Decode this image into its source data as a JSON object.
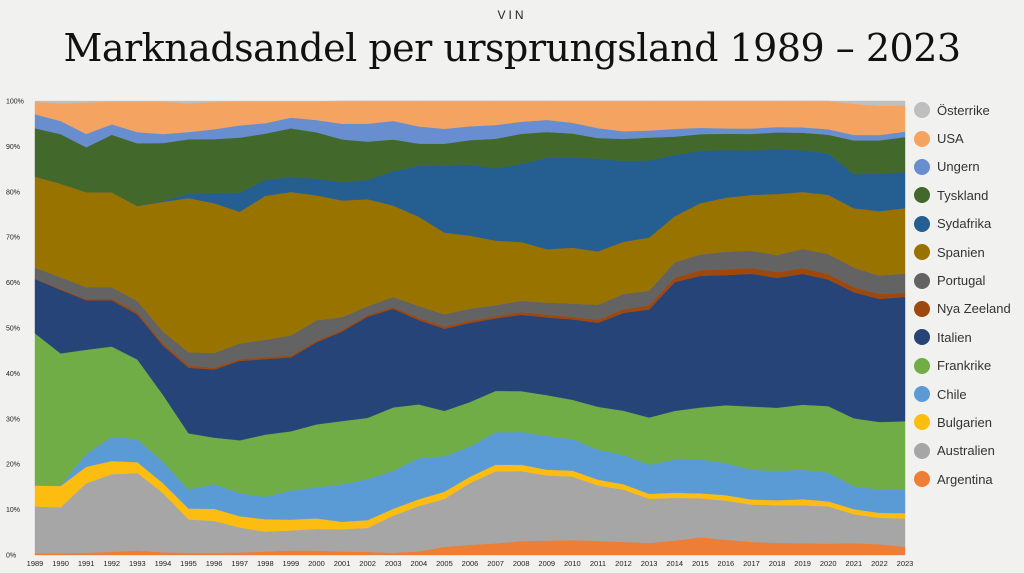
{
  "header": {
    "kicker": "VIN",
    "title": "Marknadsandel per ursprungsland 1989 – 2023"
  },
  "chart_data": {
    "type": "area",
    "stacked": true,
    "normalized": true,
    "x": [
      1989,
      1990,
      1991,
      1992,
      1993,
      1994,
      1995,
      1996,
      1997,
      1998,
      1999,
      2000,
      2001,
      2002,
      2003,
      2004,
      2005,
      2006,
      2007,
      2008,
      2009,
      2010,
      2011,
      2012,
      2013,
      2014,
      2015,
      2016,
      2017,
      2018,
      2019,
      2020,
      2021,
      2022,
      2023
    ],
    "y_ticks": [
      "0%",
      "10%",
      "20%",
      "30%",
      "40%",
      "50%",
      "60%",
      "70%",
      "80%",
      "90%",
      "100%"
    ],
    "ylim": [
      0,
      100
    ],
    "legend_position": "right",
    "series": [
      {
        "name": "Argentina",
        "color": "#ee7d35",
        "values": [
          0.4,
          0.4,
          0.5,
          0.7,
          1,
          0.6,
          0.5,
          0.5,
          0.6,
          0.8,
          1,
          1,
          0.8,
          0.7,
          0.5,
          0.8,
          1.8,
          2.3,
          2.6,
          3.1,
          3.2,
          3.3,
          3.1,
          2.9,
          2.7,
          3.2,
          3.9,
          3.4,
          2.9,
          2.7,
          2.6,
          2.5,
          2.6,
          2.4,
          1.8
        ]
      },
      {
        "name": "Australien",
        "color": "#a6a6a6",
        "values": [
          10.3,
          10.1,
          15.2,
          17,
          17.2,
          13.3,
          7.3,
          7.1,
          5.7,
          4.5,
          4.5,
          4.9,
          5.1,
          5.5,
          8.2,
          10,
          10.7,
          13.9,
          16.2,
          15.6,
          14.5,
          14.1,
          12.3,
          11.6,
          9.9,
          9.5,
          8.6,
          8.7,
          8.3,
          8.4,
          8.4,
          8.2,
          6.3,
          5.9,
          6.3
        ]
      },
      {
        "name": "Bulgarien",
        "color": "#fdbd10",
        "values": [
          4.6,
          4.7,
          3.6,
          2.9,
          2.4,
          2.2,
          2.4,
          2.7,
          2.6,
          2.8,
          2.4,
          2.4,
          1.7,
          1.8,
          1.5,
          1.5,
          1.6,
          1.4,
          1.5,
          1.4,
          1.3,
          1.3,
          1.3,
          1.2,
          1.1,
          1.1,
          1.1,
          1.2,
          1.1,
          1.1,
          1.3,
          1.1,
          1.1,
          1.1,
          1.2
        ]
      },
      {
        "name": "Chile",
        "color": "#5b9bd5",
        "values": [
          0.1,
          0.1,
          2.8,
          5.3,
          5.1,
          4.8,
          4.2,
          5.5,
          5.3,
          5.1,
          6.5,
          7.1,
          8.6,
          9.4,
          8.4,
          9.1,
          7.9,
          6.8,
          7.3,
          7.3,
          7.5,
          7,
          6.6,
          6.5,
          6.5,
          7.4,
          7.5,
          7.1,
          6.6,
          6.5,
          6.6,
          6.3,
          5,
          5.2,
          5.3
        ]
      },
      {
        "name": "Frankrike",
        "color": "#70ad47",
        "values": [
          33.4,
          29.1,
          22.8,
          19.8,
          17.7,
          15,
          12.3,
          10.4,
          12.1,
          14.1,
          13.2,
          14.2,
          14.5,
          14,
          14,
          11.8,
          10.1,
          10,
          9.3,
          9.1,
          9.1,
          8.7,
          9.5,
          9.8,
          10.6,
          10.8,
          11.4,
          12.9,
          14,
          14.1,
          14.3,
          14.6,
          14.8,
          15.1,
          15.1
        ]
      },
      {
        "name": "Italien",
        "color": "#264478",
        "values": [
          12,
          14,
          10.8,
          10.1,
          10,
          11,
          14.4,
          15.2,
          18.2,
          17.1,
          16.5,
          18.6,
          20.5,
          23.2,
          21.8,
          18.6,
          18.3,
          17.8,
          16.3,
          17,
          17.3,
          17.8,
          18.6,
          21.7,
          24.2,
          28.6,
          29,
          28.9,
          29.4,
          28.9,
          28.9,
          27.8,
          27.5,
          27.5,
          27.6
        ]
      },
      {
        "name": "Nya Zeeland",
        "color": "#9e480e",
        "values": [
          0.1,
          0.2,
          0.3,
          0.4,
          0.5,
          0.5,
          0.5,
          0.4,
          0.4,
          0.4,
          0.4,
          0.4,
          0.4,
          0.4,
          0.4,
          0.5,
          0.5,
          0.5,
          0.5,
          0.6,
          0.6,
          0.6,
          0.7,
          0.8,
          0.9,
          1,
          1.2,
          1.3,
          1.3,
          1.3,
          1.3,
          1.2,
          1.1,
          1.1,
          0.9
        ]
      },
      {
        "name": "Portugal",
        "color": "#636363",
        "values": [
          2.4,
          2.6,
          2.6,
          2.5,
          2.5,
          2.7,
          2.9,
          3.3,
          3.6,
          4,
          4.5,
          4.6,
          2.9,
          2,
          2.2,
          2.6,
          2.7,
          2.7,
          2.5,
          2.5,
          2.7,
          2.9,
          3.3,
          3.4,
          3.3,
          3.4,
          3.5,
          3.9,
          3.8,
          3.8,
          4.2,
          4.4,
          4.3,
          4.1,
          4.3
        ]
      },
      {
        "name": "Spanien",
        "color": "#997300",
        "values": [
          20.1,
          20.6,
          20.8,
          20.8,
          21.1,
          29,
          33.8,
          33.4,
          30.2,
          32.6,
          32,
          28.3,
          26.7,
          24.5,
          20.2,
          19.7,
          18.2,
          16.4,
          14.5,
          13.1,
          11.9,
          12.4,
          11.8,
          11.6,
          11.9,
          10.2,
          11.3,
          12,
          12.4,
          13.6,
          12.6,
          13,
          12.9,
          14.4,
          14.5
        ]
      },
      {
        "name": "Sydafrika",
        "color": "#255e91",
        "values": [
          0,
          0,
          0,
          0,
          0,
          0.2,
          1,
          2.3,
          4.4,
          3.6,
          3.3,
          3.8,
          4.2,
          4.4,
          7.6,
          11.2,
          14.9,
          16,
          16.2,
          17.4,
          20.3,
          20,
          20.5,
          17.9,
          17.3,
          13.6,
          11.5,
          10.6,
          9.8,
          10,
          9.2,
          9.1,
          7.5,
          8.3,
          8
        ]
      },
      {
        "name": "Tyskland",
        "color": "#43682b",
        "values": [
          10.6,
          10.9,
          9.8,
          12.6,
          13.9,
          13,
          11.9,
          12,
          12.6,
          10.5,
          10.9,
          10.5,
          9.8,
          8.8,
          7,
          4.9,
          4.9,
          5.5,
          6.7,
          6.7,
          5.8,
          5.3,
          4.6,
          4.9,
          5.1,
          4.1,
          3.7,
          3.6,
          3.7,
          3.7,
          3.9,
          4.1,
          7.3,
          7.5,
          7.8
        ]
      },
      {
        "name": "Ungern",
        "color": "#698ed0",
        "values": [
          3.1,
          2.9,
          2.9,
          2.3,
          2.5,
          2,
          1.6,
          2.2,
          2.8,
          2.4,
          2.4,
          2.8,
          3.6,
          4.1,
          4.1,
          3.8,
          3.3,
          3.1,
          3.1,
          2.7,
          2.7,
          2.4,
          2.2,
          1.7,
          1.6,
          1.7,
          1.4,
          1.2,
          1.2,
          1.2,
          1.2,
          1.2,
          1.2,
          1.2,
          1.2
        ]
      },
      {
        "name": "USA",
        "color": "#f4a460",
        "values": [
          2.7,
          3.9,
          6.9,
          5,
          6.8,
          7.3,
          6.3,
          6.1,
          5.5,
          4.9,
          3.6,
          4.2,
          5.2,
          5.2,
          4.4,
          5.6,
          6.2,
          5.7,
          5.4,
          4.6,
          4.2,
          4.8,
          6,
          6.7,
          6.6,
          6.2,
          5.9,
          6.1,
          6.1,
          5.8,
          5.8,
          6.2,
          6.8,
          6.5,
          5.8
        ]
      },
      {
        "name": "Österrike",
        "color": "#bfbfbf",
        "values": [
          0.2,
          0.5,
          0.3,
          0.1,
          0.1,
          0.1,
          0.5,
          0.2,
          0.1,
          0.1,
          0.1,
          0.1,
          0,
          0,
          0,
          0,
          0,
          0,
          0,
          0,
          0,
          0,
          0,
          0,
          0,
          0,
          0,
          0,
          0,
          0,
          0,
          0,
          0.6,
          1.1,
          1
        ]
      }
    ]
  }
}
